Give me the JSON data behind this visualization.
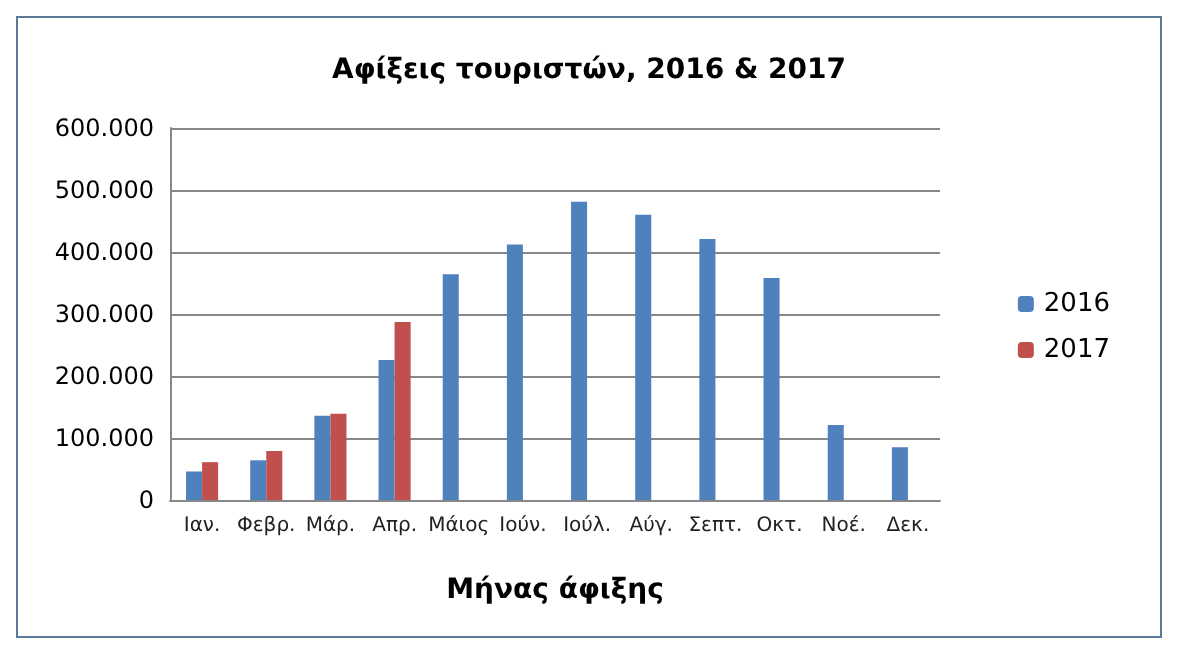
{
  "chart_data": {
    "type": "bar",
    "title": "Αφίξεις τουριστών, 2016 & 2017",
    "xlabel": "Μήνας άφιξης",
    "categories": [
      "Ιαν.",
      "Φεβρ.",
      "Μάρ.",
      "Απρ.",
      "Μάιος",
      "Ιούν.",
      "Ιούλ.",
      "Αύγ.",
      "Σεπτ.",
      "Οκτ.",
      "Νοέ.",
      "Δεκ."
    ],
    "series": [
      {
        "name": "2016",
        "color": "#4f81bd",
        "values": [
          46000,
          64000,
          136000,
          226000,
          364000,
          412000,
          481000,
          460000,
          421000,
          358000,
          121000,
          85000
        ]
      },
      {
        "name": "2017",
        "color": "#c0504d",
        "values": [
          61000,
          79000,
          139000,
          287000,
          null,
          null,
          null,
          null,
          null,
          null,
          null,
          null
        ]
      }
    ],
    "ylim": [
      0,
      600000
    ],
    "yticks": [
      {
        "value": 0,
        "label": "0"
      },
      {
        "value": 100000,
        "label": "100.000"
      },
      {
        "value": 200000,
        "label": "200.000"
      },
      {
        "value": 300000,
        "label": "300.000"
      },
      {
        "value": 400000,
        "label": "400.000"
      },
      {
        "value": 500000,
        "label": "500.000"
      },
      {
        "value": 600000,
        "label": "600.000"
      }
    ],
    "grid": "y",
    "legend": "right"
  }
}
